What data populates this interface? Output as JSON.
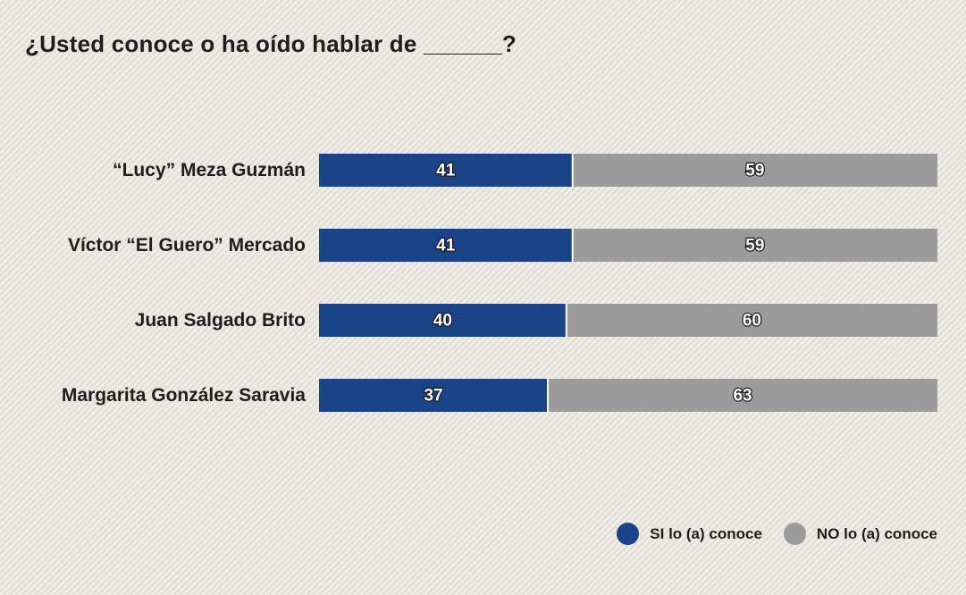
{
  "chart_data": {
    "type": "bar",
    "orientation": "horizontal",
    "stacked": true,
    "title": "¿Usted conoce o ha oído hablar de ______?",
    "categories": [
      "“Lucy” Meza Guzmán",
      "Víctor “El Guero” Mercado",
      "Juan Salgado Brito",
      "Margarita González Saravia"
    ],
    "series": [
      {
        "name": "SI lo (a) conoce",
        "color": "#1b4388",
        "values": [
          41,
          41,
          40,
          37
        ]
      },
      {
        "name": "NO lo (a) conoce",
        "color": "#9b9b9b",
        "values": [
          59,
          59,
          60,
          63
        ]
      }
    ],
    "xlim": [
      0,
      100
    ],
    "grid": false,
    "legend_position": "bottom-right"
  }
}
